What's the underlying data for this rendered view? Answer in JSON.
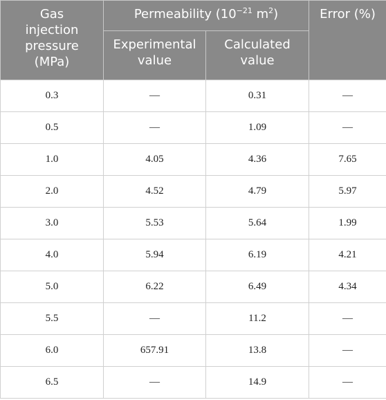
{
  "table": {
    "header": {
      "pressure": "Gas injection pressure (MPa)",
      "permeability": [
        "Permeability (10",
        "−21",
        " m",
        "2",
        ")"
      ],
      "experimental": "Experimental value",
      "calculated": "Calculated value",
      "error": "Error (%)"
    },
    "rows": [
      [
        "0.3",
        "—",
        "0.31",
        "—"
      ],
      [
        "0.5",
        "—",
        "1.09",
        "—"
      ],
      [
        "1.0",
        "4.05",
        "4.36",
        "7.65"
      ],
      [
        "2.0",
        "4.52",
        "4.79",
        "5.97"
      ],
      [
        "3.0",
        "5.53",
        "5.64",
        "1.99"
      ],
      [
        "4.0",
        "5.94",
        "6.19",
        "4.21"
      ],
      [
        "5.0",
        "6.22",
        "6.49",
        "4.34"
      ],
      [
        "5.5",
        "—",
        "11.2",
        "—"
      ],
      [
        "6.0",
        "657.91",
        "13.8",
        "—"
      ],
      [
        "6.5",
        "—",
        "14.9",
        "—"
      ]
    ]
  }
}
